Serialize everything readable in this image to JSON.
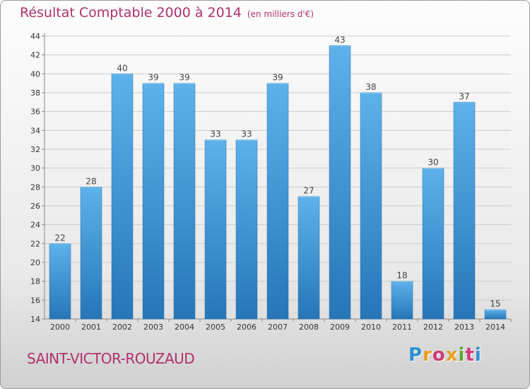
{
  "header": {
    "title": "Résultat Comptable 2000 à 2014",
    "unit": "(en milliers d'€)"
  },
  "footer": {
    "commune": "SAINT-VICTOR-ROUZAUD",
    "logo_text": "Proxiti"
  },
  "colors": {
    "title": "#b0306e",
    "bar_top": "#5db2ea",
    "bar_bottom": "#2676b8",
    "grid": "#cccccc"
  },
  "chart_data": {
    "type": "bar",
    "title": "Résultat Comptable 2000 à 2014 (en milliers d'€)",
    "xlabel": "",
    "ylabel": "",
    "ylim": [
      14,
      44
    ],
    "yticks": [
      14,
      16,
      18,
      20,
      22,
      24,
      26,
      28,
      30,
      32,
      34,
      36,
      38,
      40,
      42,
      44
    ],
    "grid": true,
    "categories": [
      "2000",
      "2001",
      "2002",
      "2003",
      "2004",
      "2005",
      "2006",
      "2007",
      "2008",
      "2009",
      "2010",
      "2011",
      "2012",
      "2013",
      "2014"
    ],
    "values": [
      22,
      28,
      40,
      39,
      39,
      33,
      33,
      39,
      27,
      43,
      38,
      18,
      30,
      37,
      15
    ]
  }
}
